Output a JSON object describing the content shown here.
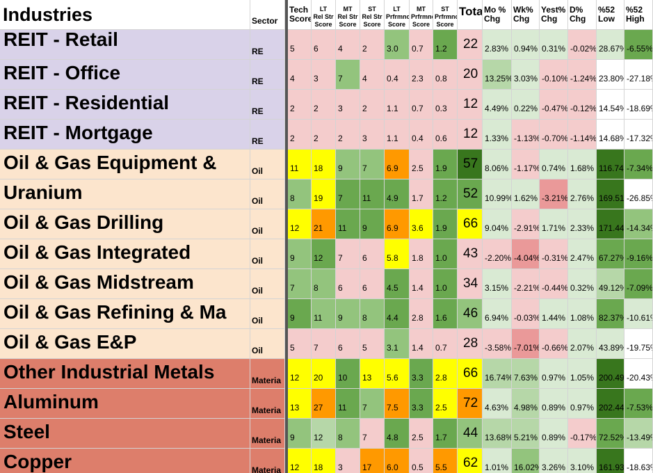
{
  "headers": {
    "industry": "Industries",
    "sector": "Sector",
    "tech": [
      "Tech",
      "Score"
    ],
    "lt_rel": [
      "LT",
      "Rel Str",
      "Score"
    ],
    "mt_rel": [
      "MT",
      "Rel Str",
      "Score"
    ],
    "st_rel": [
      "ST",
      "Rel Str",
      "Score"
    ],
    "lt_perf": [
      "LT",
      "Prfrmnc",
      "Score"
    ],
    "mt_perf": [
      "MT",
      "Prfrmnc",
      "Score"
    ],
    "st_perf": [
      "ST",
      "Prfrmnc",
      "Score"
    ],
    "total": "Tota",
    "mo": [
      "Mo %",
      "Chg"
    ],
    "wk": [
      "Wk%",
      "Chg"
    ],
    "yest": [
      "Yest%",
      "Chg"
    ],
    "d": [
      "D%",
      "Chg"
    ],
    "low": [
      "%52",
      "Low"
    ],
    "high": [
      "%52",
      "High"
    ]
  },
  "rows": [
    {
      "name": "REIT - Retail",
      "sector": "RE",
      "name_bg": "#d9d2e9",
      "v": [
        "5",
        "6",
        "4",
        "2",
        "3.0",
        "0.7",
        "1.2",
        "22",
        "2.83%",
        "0.94%",
        "0.31%",
        "-0.02%",
        "28.67%",
        "-6.55%"
      ],
      "bg": [
        "#f4cccc",
        "#f4cccc",
        "#f4cccc",
        "#f4cccc",
        "#93c47d",
        "#f4cccc",
        "#6aa84f",
        "#f4cccc",
        "#d9ead3",
        "#d9ead3",
        "#d9ead3",
        "#f4cccc",
        "#d9ead3",
        "#6aa84f"
      ]
    },
    {
      "name": "REIT - Office",
      "sector": "RE",
      "name_bg": "#d9d2e9",
      "v": [
        "4",
        "3",
        "7",
        "4",
        "0.4",
        "2.3",
        "0.8",
        "20",
        "13.25%",
        "3.03%",
        "-0.10%",
        "-1.24%",
        "23.80%",
        "-27.18%"
      ],
      "bg": [
        "#f4cccc",
        "#f4cccc",
        "#93c47d",
        "#f4cccc",
        "#f4cccc",
        "#f4cccc",
        "#f4cccc",
        "#f4cccc",
        "#b6d7a8",
        "#d9ead3",
        "#f4cccc",
        "#f4cccc",
        "#ffffff",
        "#ffffff"
      ]
    },
    {
      "name": "REIT - Residential",
      "sector": "RE",
      "name_bg": "#d9d2e9",
      "v": [
        "2",
        "2",
        "3",
        "2",
        "1.1",
        "0.7",
        "0.3",
        "12",
        "4.49%",
        "0.22%",
        "-0.47%",
        "-0.12%",
        "14.54%",
        "-18.69%"
      ],
      "bg": [
        "#f4cccc",
        "#f4cccc",
        "#f4cccc",
        "#f4cccc",
        "#f4cccc",
        "#f4cccc",
        "#f4cccc",
        "#f4cccc",
        "#d9ead3",
        "#d9ead3",
        "#f4cccc",
        "#f4cccc",
        "#ffffff",
        "#ffffff"
      ]
    },
    {
      "name": "REIT - Mortgage",
      "sector": "RE",
      "name_bg": "#d9d2e9",
      "v": [
        "2",
        "2",
        "2",
        "3",
        "1.1",
        "0.4",
        "0.6",
        "12",
        "1.33%",
        "-1.13%",
        "-0.70%",
        "-1.14%",
        "14.68%",
        "-17.32%"
      ],
      "bg": [
        "#f4cccc",
        "#f4cccc",
        "#f4cccc",
        "#f4cccc",
        "#f4cccc",
        "#f4cccc",
        "#f4cccc",
        "#f4cccc",
        "#d9ead3",
        "#f4cccc",
        "#f4cccc",
        "#f4cccc",
        "#ffffff",
        "#ffffff"
      ]
    },
    {
      "name": "Oil & Gas Equipment &",
      "sector": "Oil",
      "name_bg": "#fce5cd",
      "v": [
        "11",
        "18",
        "9",
        "7",
        "6.9",
        "2.5",
        "1.9",
        "57",
        "8.06%",
        "-1.17%",
        "0.74%",
        "1.68%",
        "116.74%",
        "-7.34%"
      ],
      "bg": [
        "#ffff00",
        "#ffff00",
        "#93c47d",
        "#93c47d",
        "#ff9900",
        "#f4cccc",
        "#6aa84f",
        "#38761d",
        "#d9ead3",
        "#f4cccc",
        "#d9ead3",
        "#d9ead3",
        "#38761d",
        "#6aa84f"
      ]
    },
    {
      "name": "Uranium",
      "sector": "Oil",
      "name_bg": "#fce5cd",
      "v": [
        "8",
        "19",
        "7",
        "11",
        "4.9",
        "1.7",
        "1.2",
        "52",
        "10.99%",
        "1.62%",
        "-3.21%",
        "2.76%",
        "169.51%",
        "-26.85%"
      ],
      "bg": [
        "#93c47d",
        "#ffff00",
        "#6aa84f",
        "#6aa84f",
        "#6aa84f",
        "#f4cccc",
        "#6aa84f",
        "#6aa84f",
        "#d9ead3",
        "#d9ead3",
        "#ea9999",
        "#d9ead3",
        "#38761d",
        "#ffffff"
      ]
    },
    {
      "name": "Oil & Gas Drilling",
      "sector": "Oil",
      "name_bg": "#fce5cd",
      "v": [
        "12",
        "21",
        "11",
        "9",
        "6.9",
        "3.6",
        "1.9",
        "66",
        "9.04%",
        "-2.91%",
        "1.71%",
        "2.33%",
        "171.44%",
        "-14.34%"
      ],
      "bg": [
        "#ffff00",
        "#ff9900",
        "#6aa84f",
        "#6aa84f",
        "#ff9900",
        "#ffff00",
        "#6aa84f",
        "#ffff00",
        "#d9ead3",
        "#f4cccc",
        "#d9ead3",
        "#d9ead3",
        "#38761d",
        "#93c47d"
      ]
    },
    {
      "name": "Oil & Gas Integrated",
      "sector": "Oil",
      "name_bg": "#fce5cd",
      "v": [
        "9",
        "12",
        "7",
        "6",
        "5.8",
        "1.8",
        "1.0",
        "43",
        "-2.20%",
        "-4.04%",
        "-0.31%",
        "2.47%",
        "67.27%",
        "-9.16%"
      ],
      "bg": [
        "#93c47d",
        "#6aa84f",
        "#f4cccc",
        "#f4cccc",
        "#ffff00",
        "#f4cccc",
        "#6aa84f",
        "#f4cccc",
        "#f4cccc",
        "#ea9999",
        "#f4cccc",
        "#d9ead3",
        "#6aa84f",
        "#6aa84f"
      ]
    },
    {
      "name": "Oil & Gas Midstream",
      "sector": "Oil",
      "name_bg": "#fce5cd",
      "v": [
        "7",
        "8",
        "6",
        "6",
        "4.5",
        "1.4",
        "1.0",
        "34",
        "3.15%",
        "-2.21%",
        "-0.44%",
        "0.32%",
        "49.12%",
        "-7.09%"
      ],
      "bg": [
        "#93c47d",
        "#93c47d",
        "#f4cccc",
        "#f4cccc",
        "#6aa84f",
        "#f4cccc",
        "#6aa84f",
        "#f4cccc",
        "#d9ead3",
        "#f4cccc",
        "#f4cccc",
        "#d9ead3",
        "#b6d7a8",
        "#6aa84f"
      ]
    },
    {
      "name": "Oil & Gas Refining & Ma",
      "sector": "Oil",
      "name_bg": "#fce5cd",
      "v": [
        "9",
        "11",
        "9",
        "8",
        "4.4",
        "2.8",
        "1.6",
        "46",
        "6.94%",
        "-0.03%",
        "1.44%",
        "1.08%",
        "82.37%",
        "-10.61%"
      ],
      "bg": [
        "#6aa84f",
        "#93c47d",
        "#93c47d",
        "#93c47d",
        "#6aa84f",
        "#f4cccc",
        "#6aa84f",
        "#93c47d",
        "#d9ead3",
        "#f4cccc",
        "#d9ead3",
        "#d9ead3",
        "#6aa84f",
        "#d9ead3"
      ]
    },
    {
      "name": "Oil & Gas E&P",
      "sector": "Oil",
      "name_bg": "#fce5cd",
      "v": [
        "5",
        "7",
        "6",
        "5",
        "3.1",
        "1.4",
        "0.7",
        "28",
        "-3.58%",
        "-7.01%",
        "-0.66%",
        "2.07%",
        "43.89%",
        "-19.75%"
      ],
      "bg": [
        "#f4cccc",
        "#f4cccc",
        "#f4cccc",
        "#f4cccc",
        "#93c47d",
        "#f4cccc",
        "#f4cccc",
        "#f4cccc",
        "#f4cccc",
        "#ea9999",
        "#f4cccc",
        "#d9ead3",
        "#d9ead3",
        "#ffffff"
      ]
    },
    {
      "name": "Other Industrial Metals",
      "sector": "Materia",
      "name_bg": "#dd7e6b",
      "v": [
        "12",
        "20",
        "10",
        "13",
        "5.6",
        "3.3",
        "2.8",
        "66",
        "16.74%",
        "7.63%",
        "0.97%",
        "1.05%",
        "200.49%",
        "-20.43%"
      ],
      "bg": [
        "#ffff00",
        "#ffff00",
        "#6aa84f",
        "#ffff00",
        "#ffff00",
        "#6aa84f",
        "#ffff00",
        "#ffff00",
        "#b6d7a8",
        "#b6d7a8",
        "#d9ead3",
        "#d9ead3",
        "#38761d",
        "#ffffff"
      ]
    },
    {
      "name": "Aluminum",
      "sector": "Materia",
      "name_bg": "#dd7e6b",
      "v": [
        "13",
        "27",
        "11",
        "7",
        "7.5",
        "3.3",
        "2.5",
        "72",
        "4.63%",
        "4.98%",
        "0.89%",
        "0.97%",
        "202.44%",
        "-7.53%"
      ],
      "bg": [
        "#ffff00",
        "#ff9900",
        "#6aa84f",
        "#93c47d",
        "#ff9900",
        "#6aa84f",
        "#ffff00",
        "#ff9900",
        "#d9ead3",
        "#b6d7a8",
        "#d9ead3",
        "#d9ead3",
        "#38761d",
        "#6aa84f"
      ]
    },
    {
      "name": "Steel",
      "sector": "Materia",
      "name_bg": "#dd7e6b",
      "v": [
        "9",
        "12",
        "8",
        "7",
        "4.8",
        "2.5",
        "1.7",
        "44",
        "13.68%",
        "5.21%",
        "0.89%",
        "-0.17%",
        "72.52%",
        "-13.49%"
      ],
      "bg": [
        "#93c47d",
        "#b6d7a8",
        "#93c47d",
        "#f4cccc",
        "#6aa84f",
        "#f4cccc",
        "#6aa84f",
        "#93c47d",
        "#b6d7a8",
        "#b6d7a8",
        "#d9ead3",
        "#f4cccc",
        "#6aa84f",
        "#b6d7a8"
      ]
    },
    {
      "name": "Copper",
      "sector": "Materia",
      "name_bg": "#dd7e6b",
      "v": [
        "12",
        "18",
        "3",
        "17",
        "6.0",
        "0.5",
        "5.5",
        "62",
        "1.01%",
        "16.02%",
        "3.26%",
        "3.10%",
        "161.93%",
        "-18.63%"
      ],
      "bg": [
        "#ffff00",
        "#ffff00",
        "#f4cccc",
        "#ff9900",
        "#ff9900",
        "#f4cccc",
        "#ff9900",
        "#ffff00",
        "#d9ead3",
        "#93c47d",
        "#d9ead3",
        "#d9ead3",
        "#38761d",
        "#ffffff"
      ]
    }
  ]
}
